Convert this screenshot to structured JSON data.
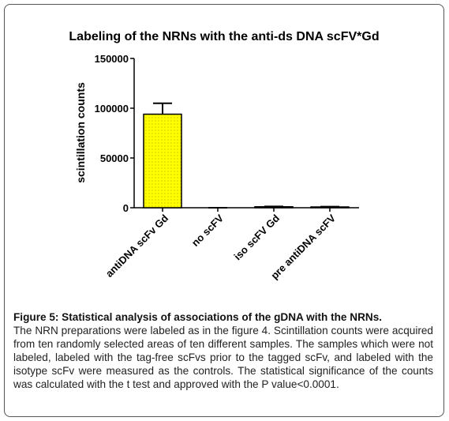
{
  "chart_data": {
    "type": "bar",
    "title": "Labeling of the NRNs with the anti-ds DNA scFV*Gd",
    "y_label": "scintillation counts",
    "categories": [
      "antiDNA scFv Gd",
      "no scFV",
      "iso scFV Gd",
      "pre antiDNA scFV"
    ],
    "values": [
      94000,
      0,
      1000,
      800
    ],
    "errors": [
      11000,
      0,
      300,
      300
    ],
    "color": "#ffff00",
    "ylim": [
      0,
      150000
    ],
    "yticks": [
      0,
      50000,
      100000,
      150000
    ]
  },
  "caption": {
    "title": "Figure 5: Statistical analysis of associations of the gDNA with the NRNs.",
    "text": "The NRN preparations were labeled as in the figure 4. Scintillation counts were acquired from ten randomly selected areas of ten different samples. The samples which were not labeled, labeled with the tag-free scFvs prior to the tagged scFv, and labeled with the isotype scFv were measured as the controls. The statistical significance of the counts was calculated with the t test and approved with the P value<0.0001."
  }
}
